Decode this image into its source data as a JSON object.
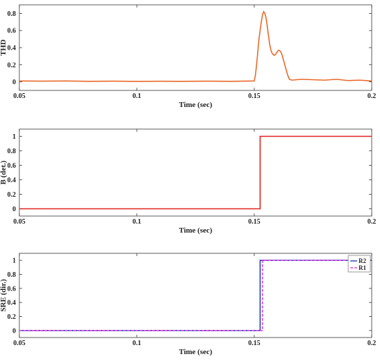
{
  "chart_data": [
    {
      "type": "line",
      "xlabel": "Time (sec)",
      "ylabel": "THD",
      "xlim": [
        0.05,
        0.2
      ],
      "ylim": [
        -0.1,
        0.9
      ],
      "xticks": [
        "0.05",
        "0.1",
        "0.15",
        "0.2"
      ],
      "yticks": [
        "0",
        "0.2",
        "0.4",
        "0.6",
        "0.8"
      ],
      "series": [
        {
          "color": "#e8692a",
          "dash": "",
          "x": [
            0.05,
            0.06,
            0.07,
            0.08,
            0.09,
            0.1,
            0.11,
            0.12,
            0.13,
            0.14,
            0.15,
            0.1505,
            0.151,
            0.1515,
            0.152,
            0.1525,
            0.153,
            0.1535,
            0.154,
            0.1545,
            0.155,
            0.1555,
            0.156,
            0.1565,
            0.157,
            0.1575,
            0.158,
            0.1585,
            0.159,
            0.1595,
            0.16,
            0.1605,
            0.161,
            0.1615,
            0.162,
            0.1625,
            0.163,
            0.1635,
            0.164,
            0.1645,
            0.165,
            0.166,
            0.168,
            0.17,
            0.175,
            0.18,
            0.185,
            0.19,
            0.195,
            0.2
          ],
          "y": [
            0.01,
            0.008,
            0.01,
            0.006,
            0.008,
            0.005,
            0.007,
            0.006,
            0.008,
            0.006,
            0.01,
            0.08,
            0.2,
            0.35,
            0.5,
            0.6,
            0.7,
            0.78,
            0.82,
            0.8,
            0.75,
            0.66,
            0.55,
            0.45,
            0.38,
            0.34,
            0.32,
            0.31,
            0.32,
            0.34,
            0.36,
            0.37,
            0.36,
            0.34,
            0.3,
            0.25,
            0.2,
            0.15,
            0.1,
            0.06,
            0.03,
            0.02,
            0.025,
            0.03,
            0.025,
            0.02,
            0.03,
            0.015,
            0.02,
            0.01
          ]
        }
      ]
    },
    {
      "type": "line",
      "xlabel": "Time (sec)",
      "ylabel": "B (det.)",
      "xlim": [
        0.05,
        0.2
      ],
      "ylim": [
        -0.1,
        1.1
      ],
      "xticks": [
        "0.05",
        "0.1",
        "0.15",
        "0.2"
      ],
      "yticks": [
        "0",
        "0.2",
        "0.4",
        "0.6",
        "0.8",
        "1"
      ],
      "series": [
        {
          "color": "#e0201b",
          "dash": "",
          "x": [
            0.05,
            0.1525,
            0.1525,
            0.2
          ],
          "y": [
            0,
            0,
            1,
            1
          ]
        }
      ]
    },
    {
      "type": "line",
      "xlabel": "Time (sec)",
      "ylabel": "SRE (dir.)",
      "xlim": [
        0.05,
        0.2
      ],
      "ylim": [
        -0.1,
        1.1
      ],
      "xticks": [
        "0.05",
        "0.1",
        "0.15",
        "0.2"
      ],
      "yticks": [
        "0",
        "0.2",
        "0.4",
        "0.6",
        "0.8",
        "1"
      ],
      "legend": "top-right",
      "series": [
        {
          "name": "R2",
          "color": "#1f3fb5",
          "dash": "",
          "x": [
            0.05,
            0.1525,
            0.1525,
            0.2
          ],
          "y": [
            0,
            0,
            1,
            1
          ]
        },
        {
          "name": "R1",
          "color": "#e040e0",
          "dash": "4,2",
          "x": [
            0.05,
            0.1535,
            0.1535,
            0.2
          ],
          "y": [
            0,
            0,
            1,
            1
          ]
        }
      ]
    }
  ]
}
